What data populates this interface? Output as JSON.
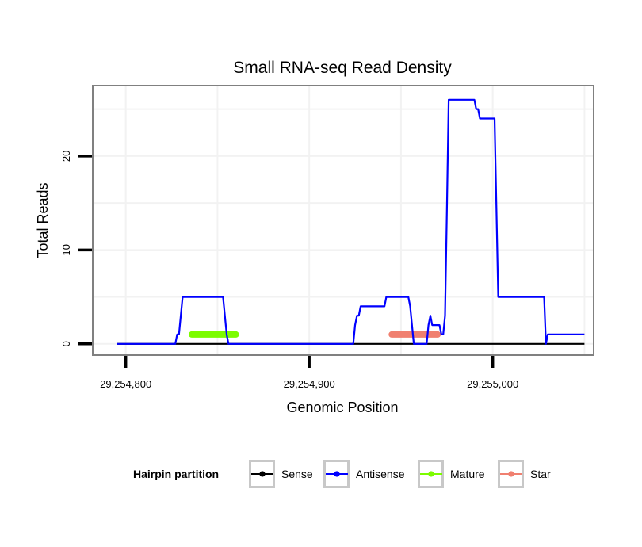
{
  "chart_data": {
    "type": "line",
    "title": "Small RNA-seq Read Density",
    "xlabel": "Genomic Position",
    "ylabel": "Total Reads",
    "xlim": [
      29254782,
      29255055
    ],
    "ylim": [
      -1.2,
      27.5
    ],
    "x_ticks": [
      29254800,
      29254900,
      29255000
    ],
    "x_tick_labels": [
      "29,254,800",
      "29,254,900",
      "29,255,000"
    ],
    "y_ticks": [
      0,
      10,
      20
    ],
    "y_tick_labels": [
      "0",
      "10",
      "20"
    ],
    "grid": true,
    "legend": {
      "title": "Hairpin partition",
      "position": "bottom",
      "entries": [
        {
          "label": "Sense",
          "color": "#000000"
        },
        {
          "label": "Antisense",
          "color": "#0000ff"
        },
        {
          "label": "Mature",
          "color": "#7cfc00"
        },
        {
          "label": "Star",
          "color": "#f08070"
        }
      ]
    },
    "series": [
      {
        "name": "Sense",
        "color": "#000000",
        "x": [
          29254795,
          29255050
        ],
        "y": [
          0,
          0
        ]
      },
      {
        "name": "Antisense",
        "color": "#0000ff",
        "x": [
          29254795,
          29254827,
          29254828,
          29254829,
          29254830,
          29254831,
          29254853,
          29254854,
          29254855,
          29254856,
          29254857,
          29254858,
          29254859,
          29254860,
          29254861,
          29254862,
          29254863,
          29254864,
          29254865,
          29254866,
          29254867,
          29254868,
          29254869,
          29254924,
          29254925,
          29254926,
          29254927,
          29254928,
          29254929,
          29254941,
          29254942,
          29254954,
          29254955,
          29254956,
          29254957,
          29254964,
          29254965,
          29254966,
          29254967,
          29254968,
          29254969,
          29254970,
          29254971,
          29254972,
          29254973,
          29254974,
          29254975,
          29254976,
          29254977,
          29254990,
          29254991,
          29254992,
          29254993,
          29254994,
          29255000,
          29255001,
          29255003,
          29255028,
          29255029,
          29255030,
          29255050
        ],
        "y": [
          0,
          0,
          1,
          1,
          3,
          5,
          5,
          3,
          1,
          0,
          0,
          0,
          0,
          0,
          0,
          0,
          0,
          0,
          0,
          0,
          0,
          0,
          0,
          0,
          2,
          3,
          3,
          4,
          4,
          4,
          5,
          5,
          4,
          2,
          0,
          0,
          2,
          3,
          2,
          2,
          2,
          2,
          2,
          1,
          1,
          3,
          14,
          26,
          26,
          26,
          25,
          25,
          24,
          24,
          24,
          24,
          5,
          5,
          0,
          1,
          1
        ]
      },
      {
        "name": "Mature",
        "color": "#7cfc00",
        "x": [
          29254836,
          29254860
        ],
        "y": [
          1,
          1
        ]
      },
      {
        "name": "Star",
        "color": "#f08070",
        "x": [
          29254945,
          29254970
        ],
        "y": [
          1,
          1
        ]
      }
    ]
  }
}
